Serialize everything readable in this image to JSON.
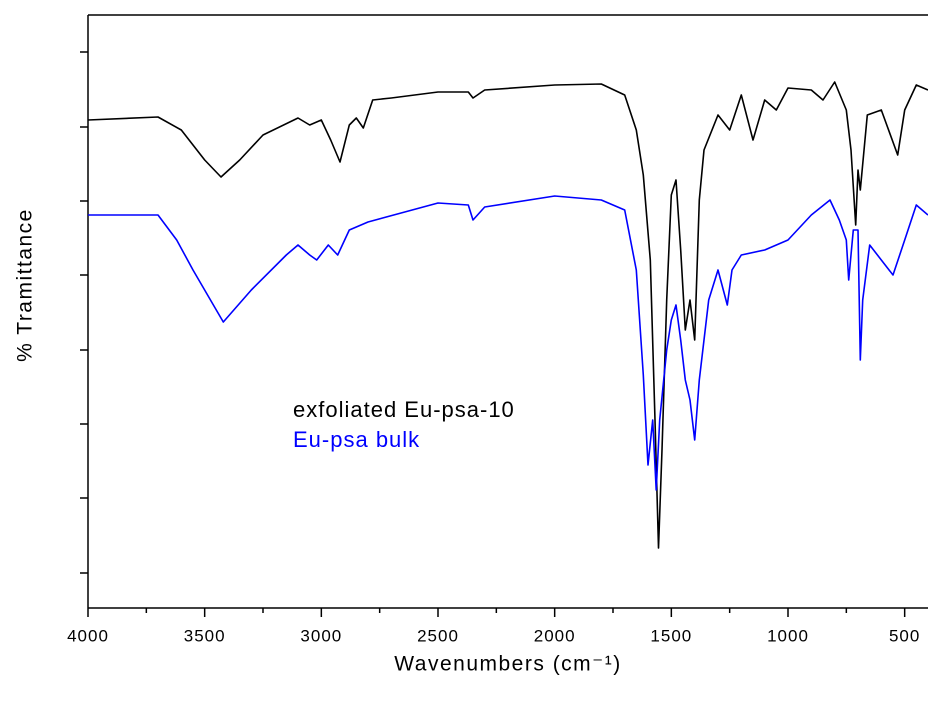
{
  "chart_data": {
    "type": "line",
    "x_label": "Wavenumbers (cm⁻¹)",
    "y_label": "% Tramittance",
    "xlim": [
      4000,
      400
    ],
    "xticks": [
      4000,
      3500,
      3000,
      2500,
      2000,
      1500,
      1000,
      500
    ],
    "xticks_minor": [
      3750,
      3250,
      2750,
      2250,
      1750,
      1250,
      750
    ],
    "ylim": [
      0,
      593
    ],
    "yticks": [
      35,
      110,
      184,
      258,
      333,
      407,
      481,
      556
    ],
    "series": [
      {
        "name": "exfoliated Eu-psa-10",
        "color": "#000000",
        "x": [
          4000,
          3700,
          3600,
          3500,
          3430,
          3350,
          3250,
          3100,
          3050,
          3000,
          2960,
          2920,
          2880,
          2850,
          2820,
          2780,
          2700,
          2500,
          2370,
          2350,
          2300,
          2000,
          1800,
          1700,
          1650,
          1620,
          1590,
          1570,
          1555,
          1540,
          1520,
          1500,
          1480,
          1460,
          1440,
          1420,
          1400,
          1380,
          1360,
          1300,
          1250,
          1200,
          1150,
          1100,
          1050,
          1000,
          900,
          850,
          800,
          750,
          730,
          710,
          700,
          690,
          660,
          600,
          530,
          500,
          450,
          400
        ],
        "values": [
          488,
          491,
          478,
          448,
          431,
          448,
          473,
          490,
          483,
          488,
          468,
          446,
          483,
          490,
          480,
          508,
          510,
          516,
          516,
          510,
          518,
          523,
          524,
          513,
          478,
          433,
          348,
          188,
          60,
          158,
          308,
          413,
          428,
          358,
          278,
          308,
          268,
          408,
          458,
          493,
          478,
          513,
          468,
          508,
          498,
          520,
          518,
          508,
          526,
          498,
          458,
          383,
          438,
          418,
          493,
          498,
          453,
          498,
          523,
          518
        ]
      },
      {
        "name": "Eu-psa bulk",
        "color": "#0000ff",
        "x": [
          4000,
          3700,
          3620,
          3550,
          3450,
          3420,
          3300,
          3150,
          3100,
          3050,
          3020,
          2970,
          2930,
          2880,
          2800,
          2500,
          2370,
          2350,
          2300,
          2000,
          1800,
          1700,
          1650,
          1620,
          1600,
          1580,
          1565,
          1550,
          1520,
          1500,
          1480,
          1460,
          1440,
          1420,
          1400,
          1380,
          1340,
          1300,
          1260,
          1240,
          1200,
          1100,
          1000,
          900,
          820,
          780,
          750,
          740,
          720,
          700,
          690,
          680,
          650,
          600,
          550,
          500,
          450,
          400
        ],
        "values": [
          393,
          393,
          368,
          338,
          298,
          286,
          318,
          353,
          363,
          353,
          348,
          363,
          353,
          378,
          386,
          405,
          403,
          388,
          401,
          412,
          408,
          398,
          338,
          233,
          143,
          188,
          118,
          188,
          258,
          288,
          303,
          268,
          228,
          208,
          168,
          228,
          308,
          338,
          303,
          338,
          353,
          358,
          368,
          393,
          408,
          388,
          368,
          328,
          378,
          378,
          248,
          308,
          363,
          348,
          333,
          368,
          403,
          393
        ]
      }
    ]
  }
}
